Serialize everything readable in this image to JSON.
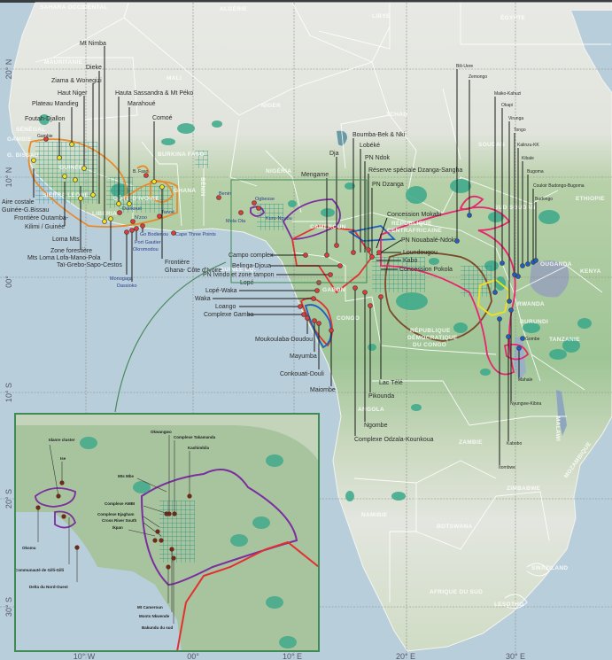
{
  "colors": {
    "ocean": "#b9cedb",
    "land_north": "#e6e8e3",
    "land_green": "#a9c79f",
    "protected_area": "#3aa88a",
    "landscape_orange": "#e8892a",
    "landscape_purple": "#7a2ea0",
    "landscape_red": "#e23030",
    "landscape_blue": "#1f5fbf",
    "landscape_pink": "#e8246f",
    "landscape_brown": "#7a4a2a",
    "landscape_yellow": "#f0e020",
    "inset_frame": "#3f8a55"
  },
  "axes": {
    "lat": [
      "20° N",
      "10° N",
      "00°",
      "10° S",
      "20° S",
      "30° S"
    ],
    "lon": [
      "10° W",
      "00°",
      "10° E",
      "20° E",
      "30° E"
    ]
  },
  "countries": {
    "sahara": "SAHARA OCCIDENTAL",
    "mauritanie": "MAURITANIE",
    "mali": "MALI",
    "algerie": "ALGÉRIE",
    "libye": "LIBYE",
    "egypte": "ÉGYPTE",
    "niger": "NIGER",
    "tchad": "TCHAD",
    "soudan": "SOUDAN",
    "sud_soudan": "SUD SOUDAN",
    "ethiopie": "ETHIOPIE",
    "senegal": "SÉNÉGAL",
    "gambie": "GAMBIE",
    "gbissau": "G. BISSAU",
    "guinee": "GUINÉE",
    "sierra": "SIERRA LEONE",
    "liberia": "LIBERIA",
    "civ": "CÔTE D'IVOIRE",
    "burkina": "BURKINA FASO",
    "ghana": "GHANA",
    "benin": "BÉNIN",
    "nigeria": "NIGÉRIA",
    "cameroun": "CAMEROUN",
    "rca1": "RÉPUBLIQUE",
    "rca2": "CENTRAFRICAINE",
    "guineq": "GUINÉE ÉQ.",
    "gabon": "GABON",
    "congo": "CONGO",
    "rdc1": "RÉPUBLIQUE",
    "rdc2": "DÉMOCRATIQUE",
    "rdc3": "DU CONGO",
    "ouganda": "OUGANDA",
    "kenya": "KENYA",
    "rwanda": "RWANDA",
    "burundi": "BURUNDI",
    "tanzanie": "TANZANIE",
    "angola": "ANGOLA",
    "zambie": "ZAMBIE",
    "malawi": "MALAWI",
    "zimbabwe": "ZIMBABWE",
    "mozambique": "MOZAMBIQUE",
    "namibie": "NAMIBIE",
    "botswana": "BOTSWANA",
    "afrique_sud": "AFRIQUE DU SUD",
    "swaziland": "SWAZILAND",
    "lesotho": "LESOTHO"
  },
  "sites": {
    "mt_nimba": "Mt Nimba",
    "dieke": "Dieke",
    "ziama": "Ziama & Wonegizi",
    "haut_niger": "Haut Niger",
    "plateau_mandieg": "Plateau Mandieg",
    "foutah": "Foutah-Djallon",
    "haute_sassandra": "Hauta Sassandra & Mt Péko",
    "marahoue": "Marahoué",
    "comoe": "Comoé",
    "gambie_site": "Gambie",
    "bfaso_site": "B. Faso",
    "aire_costale_1": "Aire costale",
    "aire_costale_2": "Guinée-G.Bissau",
    "outamba_1": "Frontière Outamba-",
    "outamba_2": "Kilimi / Guinée",
    "loma": "Loma Mts",
    "zone_forestiere_1": "Zone forestière",
    "zone_forestiere_2": "Mts Loma Lofa-Mano-Pola",
    "tai": "Taï-Grebo-Sapo-Cestos",
    "duekoue": "Duekoué",
    "nzoo": "N'zoo",
    "tanoe": "Tanoé",
    "monogaga": "Monogaga",
    "dassioko": "Dassioko",
    "go_bodienou": "Go Bodienou",
    "port_gautier": "Port Gautier",
    "okromodou": "Okromodou",
    "cape_three": "Cape Three Points",
    "ghana_civ_1": "Frontière",
    "ghana_civ_2": "Ghana- Côte d'Ivoire",
    "benin_site": "Benin",
    "mola_ola": "Mola Ola",
    "ogbesse": "Ogbesse",
    "ise": "Ise",
    "kuru_nguru": "Kuru-Ngubu",
    "campo": "Campo complex",
    "belinga": "Belinga-Djoua",
    "ivindo": "PN Ivindo et zone tampon",
    "lope": "Lopé",
    "lope_waka": "Lopé-Waka",
    "waka": "Waka",
    "loango": "Loango",
    "gamba": "Complexe Gamba",
    "moukoulaba": "Moukoulaba-Doudou",
    "mayumba": "Mayumba",
    "conkouati": "Conkouati-Douli",
    "maiombe": "Maiombe",
    "lac_tele": "Lac Télé",
    "pikounda": "Pikounda",
    "ngombe": "Ngombe",
    "odzala": "Complexe Odzala-Kounkoua",
    "mengame": "Mengame",
    "dja": "Dja",
    "boumba": "Boumba-Bek & Nki",
    "lobeke": "Lobéké",
    "ndok": "PN Ndok",
    "dzanga_sangha": "Réserve spéciale Dzanga-Sangha",
    "dzanga": "PN Dzanga",
    "mokabi": "Concession Mokabi",
    "nouabale": "PN Nouabalé-Ndoki",
    "loundougou": "Loundougou",
    "kabo": "Kabo",
    "pokola": "Concession Pokola",
    "bili_uere": "Bili-Uere",
    "zemongo": "Zemongo",
    "maiko": "Maiko-Kahuzi",
    "okapi": "Okapi",
    "virunga": "Virunga",
    "tongo": "Tongo",
    "kalinzu": "Kalinzu-KK",
    "kibale": "Kibale",
    "bugoma": "Bugoma",
    "couloir": "Couloir Budongo-Bugoma",
    "budongo": "Budongo",
    "gombe": "Gombe",
    "mahale": "Mahale",
    "nyungwe": "Nyungwe-Kibira",
    "kabobo": "Kabobo",
    "itombwe": "Itombwe"
  },
  "inset": {
    "okomu": "Okomu",
    "gilli": "Communauté de Gilli-Gilli",
    "delta": "Delta du Nord-Ouest",
    "idanre": "Idanre cluster",
    "ise": "Ise",
    "okwangwo": "Okwangwo",
    "takamanda": "Complexe Takamanda",
    "kashimbila": "Kashimbila",
    "mbe": "Mts Mbe",
    "ambi": "Complexe AMBI",
    "ejagham": "Complexe Ejagham",
    "cross_river": "Cross River South",
    "ikpan": "Ikpan",
    "mt_cameroun": "Mt Cameroun",
    "nkwende": "Monts Nkwende",
    "bakundu": "Bakundu du sud"
  }
}
